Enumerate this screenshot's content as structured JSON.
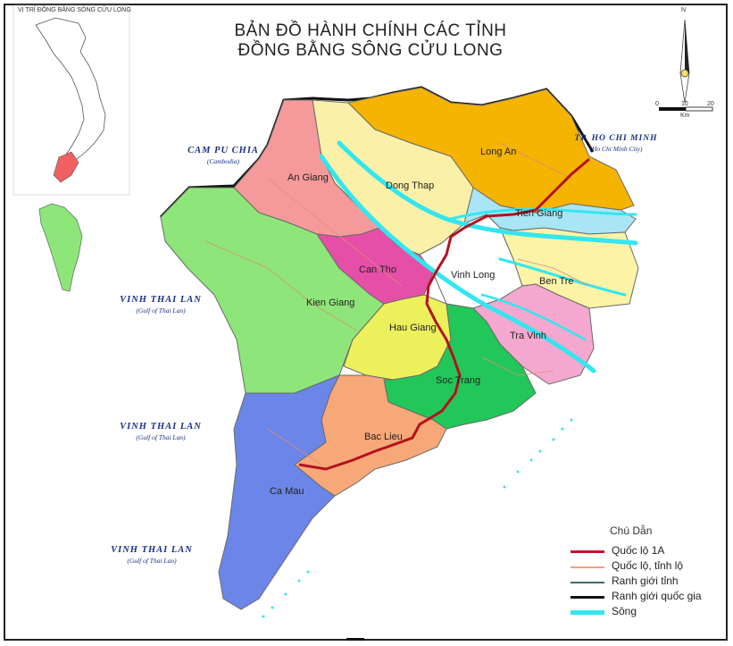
{
  "title_line1": "BẢN ĐỒ HÀNH CHÍNH CÁC TỈNH",
  "title_line2": "ĐỒNG BẰNG SÔNG CỬU LONG",
  "inset_label": "VỊ TRÍ ĐỒNG BẰNG SÔNG CỬU LONG",
  "neighbors": {
    "cambodia": "CAM PU CHIA",
    "cambodia_sub": "(Cambodia)",
    "hcmc": "TP. HO CHI MINH",
    "hcmc_sub": "(Ho Chi Minh City)"
  },
  "seas": [
    {
      "name": "VINH THAI LAN",
      "sub": "(Gulf of Thai Lan)"
    },
    {
      "name": "VINH THAI LAN",
      "sub": "(Gulf of Thai Lan)"
    },
    {
      "name": "VINH THAI LAN",
      "sub": "(Gulf of Thai Lan)"
    }
  ],
  "provinces": [
    {
      "name": "An Giang",
      "color": "#f59a9a"
    },
    {
      "name": "Dong Thap",
      "color": "#faf0a8"
    },
    {
      "name": "Long An",
      "color": "#f5b400"
    },
    {
      "name": "Tien Giang",
      "color": "#a8e6f5"
    },
    {
      "name": "Ben Tre",
      "color": "#fcf3a6"
    },
    {
      "name": "Vinh Long",
      "color": "#ffffff"
    },
    {
      "name": "Can Tho",
      "color": "#e64fa8"
    },
    {
      "name": "Kien Giang",
      "color": "#8ee67a"
    },
    {
      "name": "Hau Giang",
      "color": "#ecf05a"
    },
    {
      "name": "Tra Vinh",
      "color": "#f5a8cf"
    },
    {
      "name": "Soc Trang",
      "color": "#22c75a"
    },
    {
      "name": "Bac Lieu",
      "color": "#f7a878"
    },
    {
      "name": "Ca Mau",
      "color": "#6b86e8"
    }
  ],
  "compass": {
    "north": "N"
  },
  "scale": {
    "ticks": [
      "0",
      "10",
      "20"
    ],
    "unit": "Km"
  },
  "legend": {
    "title": "Chú Dẫn",
    "items": [
      {
        "label": "Quốc lộ 1A",
        "color": "#c8102e"
      },
      {
        "label": "Quốc lộ, tỉnh lộ",
        "color": "#f0a080"
      },
      {
        "label": "Ranh giới tỉnh",
        "color": "#3d6b6b"
      },
      {
        "label": "Ranh giới quốc gia",
        "color": "#111111"
      },
      {
        "label": "Sông",
        "color": "#33e6f0"
      }
    ]
  }
}
